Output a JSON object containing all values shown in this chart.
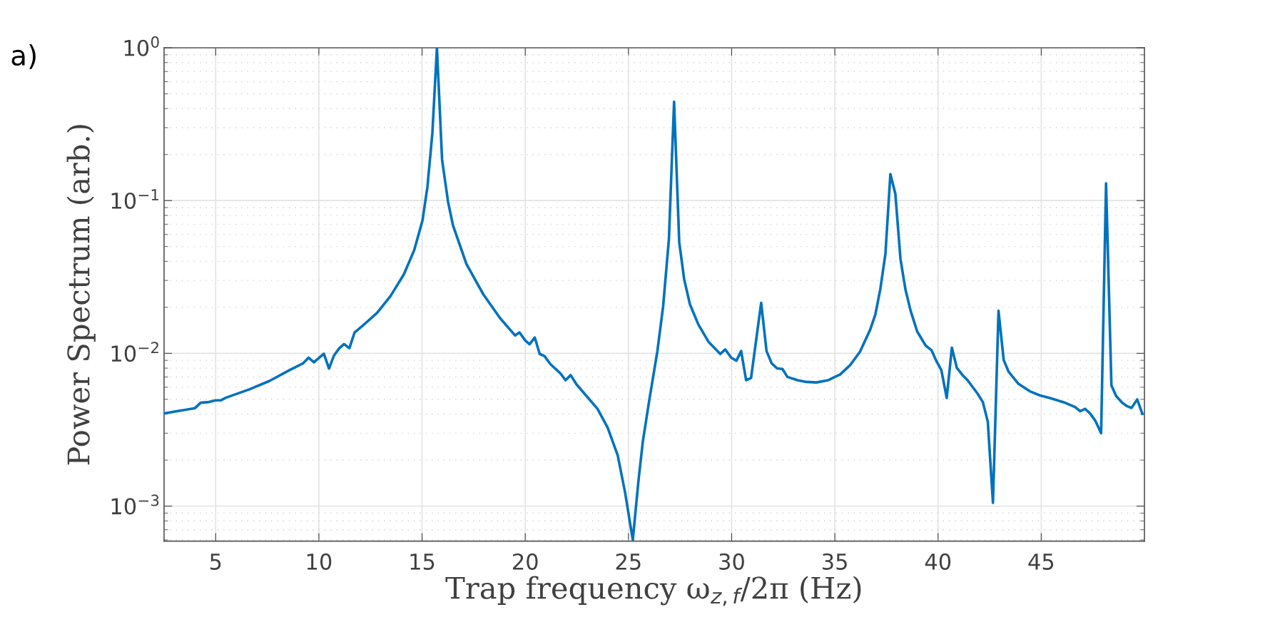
{
  "chart_data": {
    "type": "line",
    "xlabel": "Trap frequency ω$_{z,f}$/2π (Hz)",
    "ylabel": "Power Spectrum (arb.)",
    "annotations": [
      "a)"
    ],
    "log": "y",
    "grid": true,
    "marker": "none",
    "line_style": "solid",
    "xlim": [
      2.5,
      50
    ],
    "xticks": [
      5,
      10,
      15,
      20,
      25,
      30,
      35,
      40,
      45
    ],
    "ylim": [
      0.00059,
      1
    ],
    "yticks": [
      {
        "value": 0.001,
        "label": "10$^{−3}$"
      },
      {
        "value": 0.01,
        "label": "10$^{−2}$"
      },
      {
        "value": 0.1,
        "label": "10$^{−1}$"
      },
      {
        "value": 1,
        "label": "10$^{0}$"
      }
    ],
    "series": [
      {
        "color": "#0072bd",
        "x": [
          2.51,
          3.99,
          4.27,
          4.67,
          5.0,
          5.24,
          5.49,
          6.63,
          7.61,
          8.58,
          9.23,
          9.5,
          9.76,
          10.24,
          10.49,
          10.73,
          10.99,
          11.22,
          11.48,
          11.73,
          12.08,
          12.82,
          13.47,
          14.12,
          14.61,
          15.02,
          15.26,
          15.5,
          15.72,
          15.97,
          16.26,
          16.5,
          17.15,
          17.97,
          18.78,
          19.27,
          19.51,
          19.72,
          20.0,
          20.21,
          20.46,
          20.7,
          20.93,
          21.22,
          21.71,
          21.95,
          22.2,
          22.48,
          23.5,
          23.99,
          24.48,
          24.84,
          25.21,
          25.49,
          25.7,
          26.02,
          26.4,
          26.68,
          26.96,
          27.21,
          27.46,
          27.7,
          27.98,
          28.39,
          28.88,
          29.45,
          29.69,
          29.98,
          30.23,
          30.46,
          30.7,
          30.94,
          31.43,
          31.69,
          31.94,
          32.21,
          32.46,
          32.7,
          33.19,
          33.62,
          34.11,
          34.68,
          35.0,
          35.25,
          35.74,
          36.22,
          36.71,
          36.96,
          37.2,
          37.45,
          37.69,
          37.93,
          38.18,
          38.42,
          38.67,
          38.99,
          39.4,
          39.68,
          39.92,
          40.16,
          40.42,
          40.67,
          40.91,
          41.19,
          41.43,
          41.92,
          42.17,
          42.41,
          42.66,
          42.93,
          43.18,
          43.42,
          43.88,
          44.45,
          44.93,
          45.42,
          46.15,
          46.64,
          46.89,
          47.13,
          47.38,
          47.62,
          47.9,
          48.14,
          48.4,
          48.63,
          48.92,
          49.16,
          49.37,
          49.65,
          49.9
        ],
        "values": [
          0.00405,
          0.00437,
          0.00475,
          0.0048,
          0.00492,
          0.00492,
          0.00512,
          0.00581,
          0.0066,
          0.00776,
          0.00859,
          0.00936,
          0.00873,
          0.00995,
          0.00796,
          0.00966,
          0.0108,
          0.0115,
          0.0108,
          0.0137,
          0.015,
          0.0184,
          0.0237,
          0.0329,
          0.047,
          0.074,
          0.123,
          0.277,
          1.0,
          0.185,
          0.098,
          0.0687,
          0.0384,
          0.0243,
          0.017,
          0.01426,
          0.0131,
          0.0137,
          0.01213,
          0.01147,
          0.0127,
          0.0099,
          0.0096,
          0.0085,
          0.00738,
          0.00667,
          0.0072,
          0.00627,
          0.00433,
          0.00327,
          0.00215,
          0.00122,
          0.0006,
          0.00149,
          0.00267,
          0.00504,
          0.0103,
          0.0203,
          0.056,
          0.444,
          0.0533,
          0.0305,
          0.0209,
          0.0154,
          0.0119,
          0.0099,
          0.0106,
          0.00936,
          0.00895,
          0.01035,
          0.00667,
          0.0069,
          0.0214,
          0.01035,
          0.00859,
          0.00796,
          0.0079,
          0.00701,
          0.00667,
          0.0065,
          0.00645,
          0.00667,
          0.00701,
          0.00726,
          0.00837,
          0.01026,
          0.01426,
          0.0179,
          0.0262,
          0.0447,
          0.149,
          0.111,
          0.0414,
          0.0262,
          0.019,
          0.0139,
          0.01124,
          0.0105,
          0.0089,
          0.00776,
          0.0051,
          0.0109,
          0.00804,
          0.0072,
          0.00667,
          0.00544,
          0.0048,
          0.00357,
          0.00105,
          0.019,
          0.00904,
          0.00757,
          0.00634,
          0.00564,
          0.00531,
          0.0051,
          0.00475,
          0.00445,
          0.00418,
          0.00433,
          0.00402,
          0.00362,
          0.003,
          0.1295,
          0.00617,
          0.00525,
          0.00475,
          0.00451,
          0.00439,
          0.00499,
          0.00402
        ]
      }
    ]
  }
}
